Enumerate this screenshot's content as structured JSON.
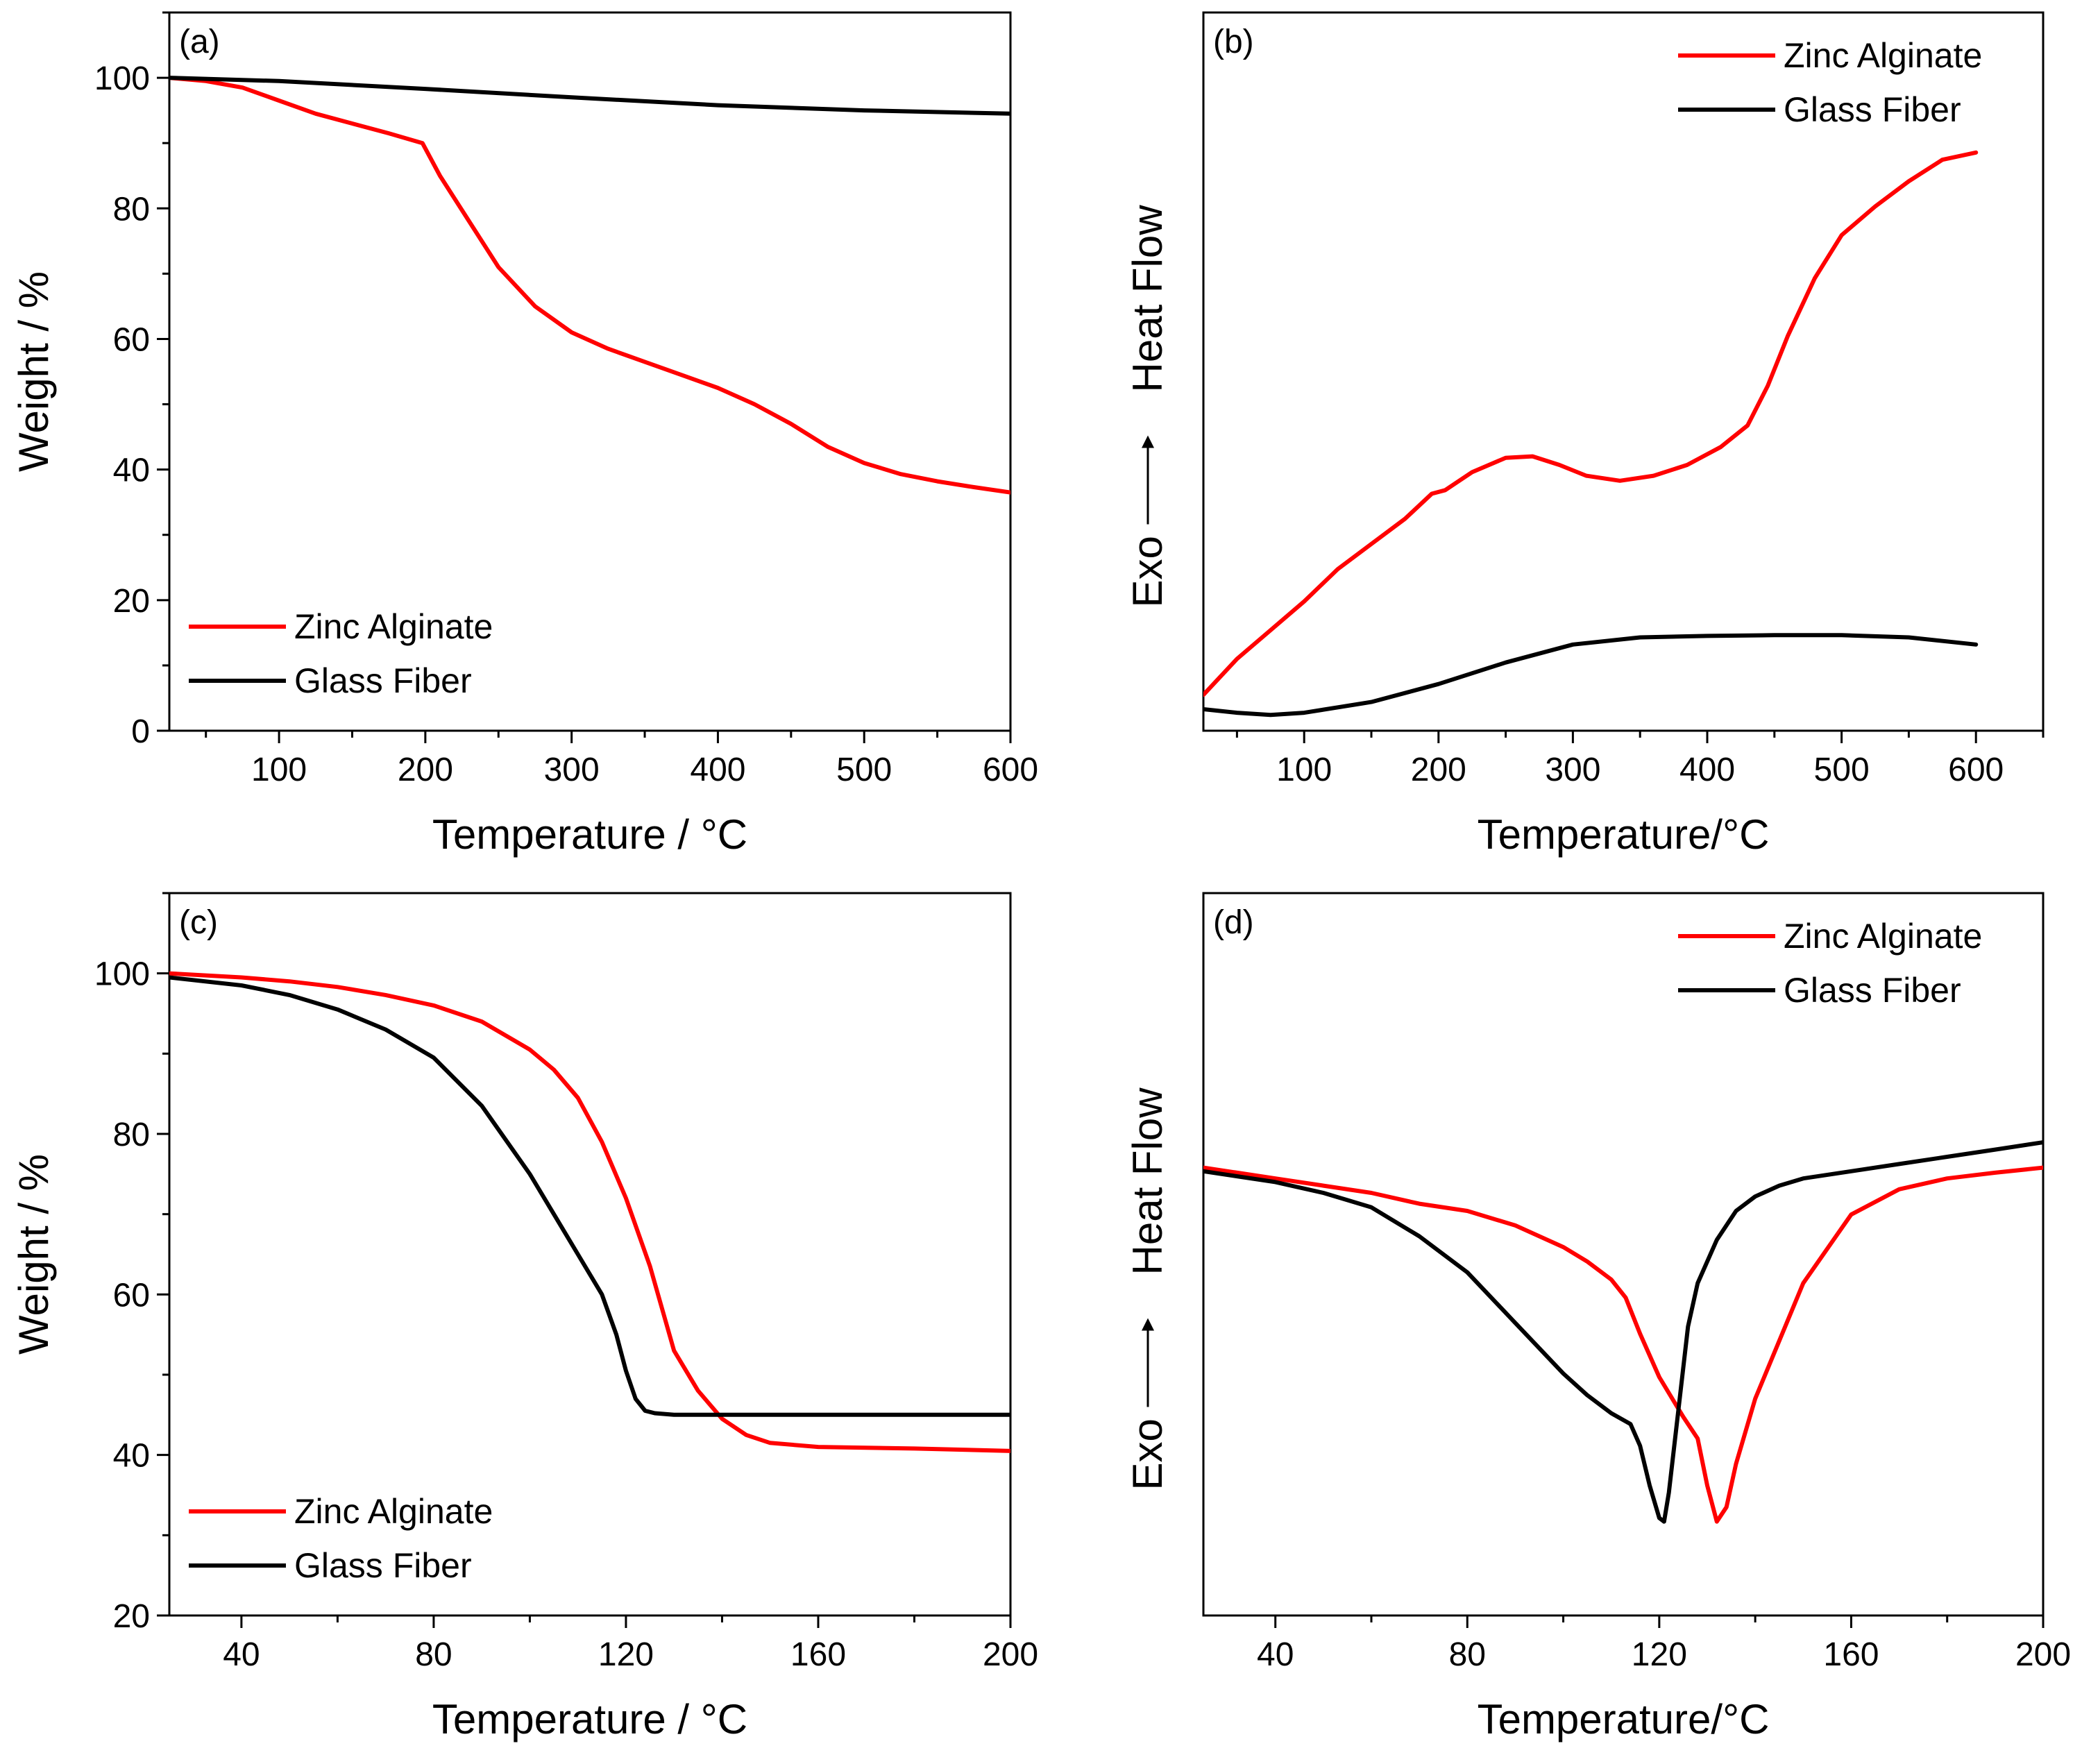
{
  "chart_data": [
    {
      "id": "a",
      "type": "line",
      "panel_label": "(a)",
      "xlabel": "Temperature / °C",
      "ylabel": "Weight / %",
      "xlim": [
        25,
        600
      ],
      "ylim": [
        0,
        110
      ],
      "xticks": [
        100,
        200,
        300,
        400,
        500,
        600
      ],
      "yticks": [
        0,
        20,
        40,
        60,
        80,
        100
      ],
      "show_yticks": true,
      "legend": {
        "position": "bottom-left"
      },
      "series": [
        {
          "name": "Zinc Alginate",
          "color": "#ff0000",
          "x": [
            25,
            50,
            75,
            100,
            125,
            150,
            175,
            198,
            210,
            230,
            250,
            275,
            300,
            325,
            350,
            375,
            400,
            425,
            450,
            475,
            500,
            525,
            550,
            575,
            600
          ],
          "y": [
            100,
            99.5,
            98.5,
            96.5,
            94.5,
            93,
            91.5,
            90,
            85,
            78,
            71,
            65,
            61,
            58.5,
            56.5,
            54.5,
            52.5,
            50,
            47,
            43.5,
            41,
            39.3,
            38.2,
            37.3,
            36.5
          ]
        },
        {
          "name": "Glass Fiber",
          "color": "#000000",
          "x": [
            25,
            100,
            200,
            300,
            400,
            500,
            600
          ],
          "y": [
            100,
            99.5,
            98.3,
            97,
            95.8,
            95,
            94.5
          ]
        }
      ]
    },
    {
      "id": "b",
      "type": "line",
      "panel_label": "(b)",
      "xlabel": "Temperature/°C",
      "ylabel": "Exo ⟶ Heat Flow",
      "ylabel_parts": [
        "Exo",
        "Heat Flow"
      ],
      "xlim": [
        25,
        650
      ],
      "ylim": [
        0,
        100
      ],
      "xticks": [
        100,
        200,
        300,
        400,
        500,
        600
      ],
      "yticks": [],
      "show_yticks": false,
      "legend": {
        "position": "top-right"
      },
      "series": [
        {
          "name": "Zinc Alginate",
          "color": "#ff0000",
          "x": [
            25,
            50,
            75,
            100,
            125,
            150,
            175,
            195,
            205,
            225,
            250,
            270,
            290,
            310,
            335,
            360,
            385,
            410,
            430,
            445,
            460,
            480,
            500,
            525,
            550,
            575,
            600
          ],
          "y": [
            5,
            10,
            14,
            18,
            22.5,
            26,
            29.5,
            33,
            33.5,
            36,
            38,
            38.2,
            37,
            35.5,
            34.8,
            35.5,
            37,
            39.5,
            42.5,
            48,
            55,
            63,
            69,
            73,
            76.5,
            79.5,
            80.5
          ]
        },
        {
          "name": "Glass Fiber",
          "color": "#000000",
          "x": [
            25,
            50,
            75,
            100,
            150,
            200,
            250,
            300,
            350,
            400,
            450,
            500,
            550,
            600
          ],
          "y": [
            3,
            2.5,
            2.2,
            2.5,
            4,
            6.5,
            9.5,
            12,
            13,
            13.2,
            13.3,
            13.3,
            13,
            12
          ]
        }
      ]
    },
    {
      "id": "c",
      "type": "line",
      "panel_label": "(c)",
      "xlabel": "Temperature / °C",
      "ylabel": "Weight / %",
      "xlim": [
        25,
        200
      ],
      "ylim": [
        20,
        110
      ],
      "xticks": [
        40,
        80,
        120,
        160,
        200
      ],
      "yticks": [
        20,
        40,
        60,
        80,
        100
      ],
      "show_yticks": true,
      "legend": {
        "position": "bottom-left"
      },
      "series": [
        {
          "name": "Zinc Alginate",
          "color": "#ff0000",
          "x": [
            25,
            40,
            50,
            60,
            70,
            80,
            90,
            100,
            105,
            110,
            115,
            120,
            125,
            130,
            135,
            140,
            145,
            150,
            160,
            180,
            200
          ],
          "y": [
            100,
            99.5,
            99,
            98.3,
            97.3,
            96,
            94,
            90.5,
            88,
            84.5,
            79,
            72,
            63.5,
            53,
            48,
            44.5,
            42.5,
            41.5,
            41,
            40.8,
            40.5
          ]
        },
        {
          "name": "Glass Fiber",
          "color": "#000000",
          "x": [
            25,
            40,
            50,
            60,
            70,
            80,
            90,
            100,
            105,
            110,
            115,
            118,
            120,
            122,
            124,
            126,
            130,
            140,
            200
          ],
          "y": [
            99.5,
            98.5,
            97.3,
            95.5,
            93,
            89.5,
            83.5,
            75,
            70,
            65,
            60,
            55,
            50.5,
            47,
            45.5,
            45.2,
            45,
            45,
            45
          ]
        }
      ]
    },
    {
      "id": "d",
      "type": "line",
      "panel_label": "(d)",
      "xlabel": "Temperature/°C",
      "ylabel": "Exo ⟶ Heat Flow",
      "ylabel_parts": [
        "Exo",
        "Heat Flow"
      ],
      "xlim": [
        25,
        200
      ],
      "ylim": [
        0,
        100
      ],
      "xticks": [
        40,
        80,
        120,
        160,
        200
      ],
      "yticks": [],
      "show_yticks": false,
      "legend": {
        "position": "top-right"
      },
      "series": [
        {
          "name": "Zinc Alginate",
          "color": "#ff0000",
          "x": [
            25,
            40,
            50,
            60,
            70,
            80,
            90,
            100,
            105,
            110,
            113,
            116,
            120,
            125,
            128,
            130,
            132,
            134,
            136,
            140,
            145,
            150,
            160,
            170,
            180,
            190,
            200
          ],
          "y": [
            62,
            60.5,
            59.5,
            58.5,
            57,
            56,
            54,
            51,
            49,
            46.5,
            44,
            39,
            33,
            27.5,
            24.5,
            18,
            13,
            15,
            21,
            30,
            38,
            46,
            55.5,
            59,
            60.5,
            61.3,
            62
          ]
        },
        {
          "name": "Glass Fiber",
          "color": "#000000",
          "x": [
            25,
            40,
            50,
            60,
            70,
            80,
            90,
            100,
            105,
            110,
            114,
            116,
            118,
            120,
            121,
            122,
            124,
            126,
            128,
            132,
            136,
            140,
            145,
            150,
            160,
            170,
            180,
            190,
            200
          ],
          "y": [
            61.5,
            60,
            58.5,
            56.5,
            52.5,
            47.5,
            40.5,
            33.5,
            30.5,
            28,
            26.5,
            23.5,
            18,
            13.5,
            13,
            17,
            28.5,
            40,
            46,
            52,
            56,
            58,
            59.5,
            60.5,
            61.5,
            62.5,
            63.5,
            64.5,
            65.5
          ]
        }
      ]
    }
  ]
}
